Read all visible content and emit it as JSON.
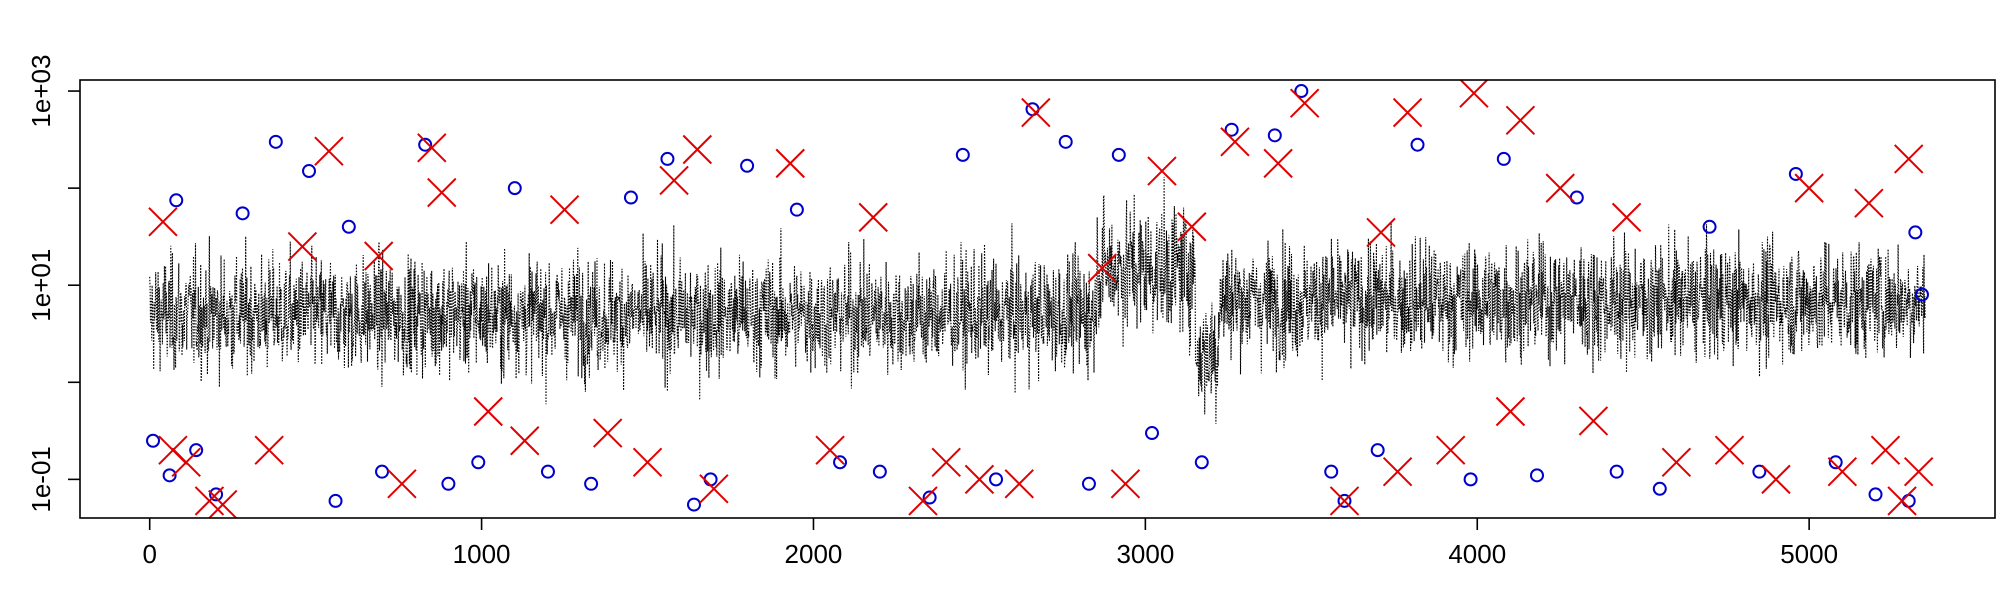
{
  "chart_data": {
    "type": "line",
    "title": "",
    "xlabel": "",
    "ylabel": "",
    "x_range": [
      0,
      5350
    ],
    "y_scale": "log10",
    "ylim": [
      0.04,
      1300
    ],
    "x_ticks": [
      {
        "value": 0,
        "label": "0"
      },
      {
        "value": 1000,
        "label": "1000"
      },
      {
        "value": 2000,
        "label": "2000"
      },
      {
        "value": 3000,
        "label": "3000"
      },
      {
        "value": 4000,
        "label": "4000"
      },
      {
        "value": 5000,
        "label": "5000"
      }
    ],
    "y_ticks": [
      {
        "value": 0.1,
        "label": "1e-01"
      },
      {
        "value": 10,
        "label": "1e+01"
      },
      {
        "value": 1000,
        "label": "1e+03"
      }
    ],
    "grid": false,
    "legend": "none",
    "series": [
      {
        "style": "black dotted line",
        "color": "#000000",
        "baseline_segments": [
          {
            "x_start": 0,
            "x_end": 2850,
            "median": 5,
            "spread_log10": 0.75
          },
          {
            "x_start": 2850,
            "x_end": 3150,
            "median": 15,
            "spread_log10": 0.85
          },
          {
            "x_start": 3150,
            "x_end": 3220,
            "median": 2,
            "spread_log10": 0.8
          },
          {
            "x_start": 3220,
            "x_end": 5330,
            "median": 7,
            "spread_log10": 0.75
          }
        ]
      },
      {
        "style": "blue circle markers",
        "color": "#0000cc",
        "marker": "circle",
        "points": [
          {
            "x": 10,
            "y": 0.25
          },
          {
            "x": 60,
            "y": 0.11
          },
          {
            "x": 80,
            "y": 75
          },
          {
            "x": 140,
            "y": 0.2
          },
          {
            "x": 200,
            "y": 0.07
          },
          {
            "x": 280,
            "y": 55
          },
          {
            "x": 380,
            "y": 300
          },
          {
            "x": 480,
            "y": 150
          },
          {
            "x": 560,
            "y": 0.06
          },
          {
            "x": 600,
            "y": 40
          },
          {
            "x": 700,
            "y": 0.12
          },
          {
            "x": 830,
            "y": 280
          },
          {
            "x": 900,
            "y": 0.09
          },
          {
            "x": 990,
            "y": 0.15
          },
          {
            "x": 1100,
            "y": 100
          },
          {
            "x": 1200,
            "y": 0.12
          },
          {
            "x": 1330,
            "y": 0.09
          },
          {
            "x": 1450,
            "y": 80
          },
          {
            "x": 1560,
            "y": 200
          },
          {
            "x": 1640,
            "y": 0.055
          },
          {
            "x": 1690,
            "y": 0.1
          },
          {
            "x": 1800,
            "y": 170
          },
          {
            "x": 1950,
            "y": 60
          },
          {
            "x": 2080,
            "y": 0.15
          },
          {
            "x": 2200,
            "y": 0.12
          },
          {
            "x": 2350,
            "y": 0.065
          },
          {
            "x": 2450,
            "y": 220
          },
          {
            "x": 2550,
            "y": 0.1
          },
          {
            "x": 2660,
            "y": 650
          },
          {
            "x": 2760,
            "y": 300
          },
          {
            "x": 2830,
            "y": 0.09
          },
          {
            "x": 2920,
            "y": 220
          },
          {
            "x": 3020,
            "y": 0.3
          },
          {
            "x": 3170,
            "y": 0.15
          },
          {
            "x": 3260,
            "y": 400
          },
          {
            "x": 3390,
            "y": 350
          },
          {
            "x": 3470,
            "y": 1000
          },
          {
            "x": 3560,
            "y": 0.12
          },
          {
            "x": 3600,
            "y": 0.06
          },
          {
            "x": 3700,
            "y": 0.2
          },
          {
            "x": 3820,
            "y": 280
          },
          {
            "x": 3980,
            "y": 0.1
          },
          {
            "x": 4080,
            "y": 200
          },
          {
            "x": 4180,
            "y": 0.11
          },
          {
            "x": 4300,
            "y": 80
          },
          {
            "x": 4420,
            "y": 0.12
          },
          {
            "x": 4550,
            "y": 0.08
          },
          {
            "x": 4700,
            "y": 40
          },
          {
            "x": 4850,
            "y": 0.12
          },
          {
            "x": 4960,
            "y": 140
          },
          {
            "x": 5080,
            "y": 0.15
          },
          {
            "x": 5200,
            "y": 0.07
          },
          {
            "x": 5300,
            "y": 0.06
          },
          {
            "x": 5320,
            "y": 35
          },
          {
            "x": 5340,
            "y": 8
          }
        ]
      },
      {
        "style": "red cross markers",
        "color": "#e00000",
        "marker": "x",
        "points": [
          {
            "x": 40,
            "y": 45
          },
          {
            "x": 70,
            "y": 0.2
          },
          {
            "x": 110,
            "y": 0.15
          },
          {
            "x": 180,
            "y": 0.06
          },
          {
            "x": 220,
            "y": 0.055
          },
          {
            "x": 360,
            "y": 0.2
          },
          {
            "x": 460,
            "y": 25
          },
          {
            "x": 540,
            "y": 240
          },
          {
            "x": 690,
            "y": 20
          },
          {
            "x": 760,
            "y": 0.09
          },
          {
            "x": 850,
            "y": 260
          },
          {
            "x": 880,
            "y": 90
          },
          {
            "x": 1020,
            "y": 0.5
          },
          {
            "x": 1130,
            "y": 0.25
          },
          {
            "x": 1250,
            "y": 60
          },
          {
            "x": 1380,
            "y": 0.3
          },
          {
            "x": 1500,
            "y": 0.15
          },
          {
            "x": 1580,
            "y": 120
          },
          {
            "x": 1650,
            "y": 250
          },
          {
            "x": 1700,
            "y": 0.08
          },
          {
            "x": 1930,
            "y": 180
          },
          {
            "x": 2050,
            "y": 0.2
          },
          {
            "x": 2180,
            "y": 50
          },
          {
            "x": 2330,
            "y": 0.06
          },
          {
            "x": 2400,
            "y": 0.15
          },
          {
            "x": 2500,
            "y": 0.1
          },
          {
            "x": 2620,
            "y": 0.09
          },
          {
            "x": 2670,
            "y": 600
          },
          {
            "x": 2870,
            "y": 15
          },
          {
            "x": 2940,
            "y": 0.09
          },
          {
            "x": 3050,
            "y": 150
          },
          {
            "x": 3140,
            "y": 40
          },
          {
            "x": 3270,
            "y": 300
          },
          {
            "x": 3400,
            "y": 180
          },
          {
            "x": 3480,
            "y": 750
          },
          {
            "x": 3600,
            "y": 0.06
          },
          {
            "x": 3710,
            "y": 35
          },
          {
            "x": 3760,
            "y": 0.12
          },
          {
            "x": 3790,
            "y": 600
          },
          {
            "x": 3920,
            "y": 0.2
          },
          {
            "x": 3990,
            "y": 950
          },
          {
            "x": 4100,
            "y": 0.5
          },
          {
            "x": 4130,
            "y": 500
          },
          {
            "x": 4250,
            "y": 100
          },
          {
            "x": 4350,
            "y": 0.4
          },
          {
            "x": 4450,
            "y": 50
          },
          {
            "x": 4600,
            "y": 0.15
          },
          {
            "x": 4760,
            "y": 0.2
          },
          {
            "x": 4900,
            "y": 0.1
          },
          {
            "x": 5000,
            "y": 100
          },
          {
            "x": 5100,
            "y": 0.12
          },
          {
            "x": 5180,
            "y": 70
          },
          {
            "x": 5230,
            "y": 0.2
          },
          {
            "x": 5280,
            "y": 0.06
          },
          {
            "x": 5300,
            "y": 200
          },
          {
            "x": 5330,
            "y": 0.12
          }
        ]
      }
    ]
  }
}
